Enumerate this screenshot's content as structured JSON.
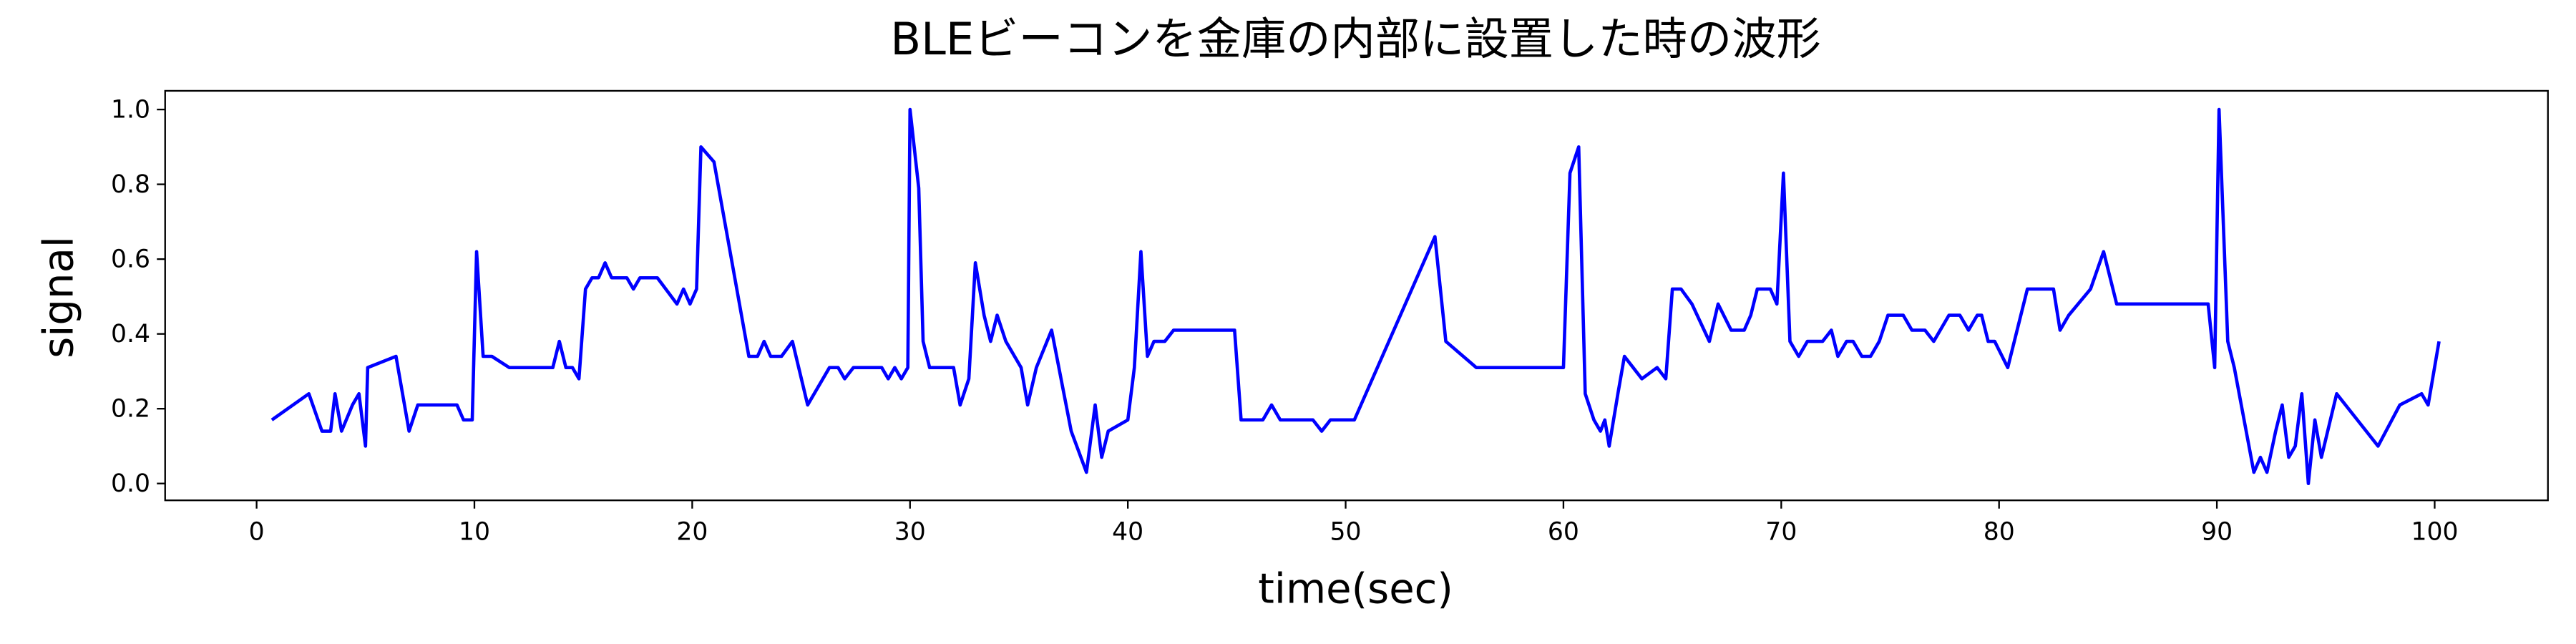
{
  "chart_data": {
    "type": "line",
    "title": "BLEビーコンを金庫の内部に設置した時の波形",
    "x_label": "time(sec)",
    "y_label": "signal",
    "xlim": [
      -4.2,
      105.2
    ],
    "ylim": [
      -0.045,
      1.05
    ],
    "xticks": [
      0,
      10,
      20,
      30,
      40,
      50,
      60,
      70,
      80,
      90,
      100
    ],
    "yticks": [
      {
        "value": 0,
        "label": "0.0"
      },
      {
        "value": 0.2,
        "label": "0.2"
      },
      {
        "value": 0.4,
        "label": "0.4"
      },
      {
        "value": 0.6,
        "label": "0.6"
      },
      {
        "value": 0.8,
        "label": "0.8"
      },
      {
        "value": 1,
        "label": "1.0"
      }
    ],
    "grid": false,
    "series": [
      {
        "color": "#0000ff",
        "x": [
          0.7,
          2.4,
          3.0,
          3.4,
          3.6,
          3.9,
          4.4,
          4.7,
          5.0,
          5.1,
          6.4,
          7.0,
          7.4,
          9.2,
          9.5,
          9.9,
          10.1,
          10.4,
          10.8,
          11.6,
          13.6,
          13.9,
          14.2,
          14.5,
          14.8,
          15.1,
          15.4,
          15.7,
          16.0,
          16.3,
          17.0,
          17.3,
          17.6,
          18.4,
          19.3,
          19.6,
          19.9,
          20.2,
          20.4,
          21.0,
          22.6,
          23.0,
          23.3,
          23.6,
          24.1,
          24.6,
          25.3,
          26.3,
          26.7,
          27.0,
          27.4,
          28.7,
          29.0,
          29.3,
          29.6,
          29.9,
          30.0,
          30.4,
          30.6,
          30.9,
          32.0,
          32.3,
          32.7,
          33.0,
          33.4,
          33.7,
          34.0,
          34.4,
          35.1,
          35.4,
          35.8,
          36.5,
          37.4,
          38.1,
          38.5,
          38.8,
          39.1,
          40.0,
          40.3,
          40.6,
          40.9,
          41.2,
          41.7,
          42.1,
          44.9,
          45.2,
          46.2,
          46.6,
          47.0,
          48.5,
          48.9,
          49.3,
          50.4,
          54.1,
          54.6,
          56.0,
          60.0,
          60.3,
          60.7,
          61.0,
          61.4,
          61.7,
          61.9,
          62.1,
          62.5,
          62.8,
          63.6,
          64.3,
          64.7,
          65.0,
          65.4,
          65.9,
          66.7,
          67.1,
          67.7,
          68.3,
          68.6,
          68.9,
          69.5,
          69.8,
          70.1,
          70.4,
          70.8,
          71.2,
          71.9,
          72.3,
          72.6,
          73.0,
          73.3,
          73.7,
          74.1,
          74.5,
          74.9,
          75.6,
          76.0,
          76.6,
          77.0,
          77.7,
          78.2,
          78.6,
          79.0,
          79.2,
          79.5,
          79.8,
          80.4,
          81.3,
          82.5,
          82.8,
          83.2,
          84.2,
          84.8,
          85.4,
          89.6,
          89.9,
          90.1,
          90.5,
          90.8,
          91.7,
          92.0,
          92.3,
          92.7,
          93.0,
          93.3,
          93.6,
          93.9,
          94.2,
          94.5,
          94.8,
          95.5,
          97.4,
          98.4,
          99.4,
          99.7,
          100.2
        ],
        "values": [
          0.17,
          0.24,
          0.14,
          0.14,
          0.24,
          0.14,
          0.21,
          0.24,
          0.1,
          0.31,
          0.34,
          0.14,
          0.21,
          0.21,
          0.17,
          0.17,
          0.62,
          0.34,
          0.34,
          0.31,
          0.31,
          0.38,
          0.31,
          0.31,
          0.28,
          0.52,
          0.55,
          0.55,
          0.59,
          0.55,
          0.55,
          0.52,
          0.55,
          0.55,
          0.48,
          0.52,
          0.48,
          0.52,
          0.9,
          0.86,
          0.34,
          0.34,
          0.38,
          0.34,
          0.34,
          0.38,
          0.21,
          0.31,
          0.31,
          0.28,
          0.31,
          0.31,
          0.28,
          0.31,
          0.28,
          0.31,
          1.0,
          0.79,
          0.38,
          0.31,
          0.31,
          0.21,
          0.28,
          0.59,
          0.45,
          0.38,
          0.45,
          0.38,
          0.31,
          0.21,
          0.31,
          0.41,
          0.14,
          0.03,
          0.21,
          0.07,
          0.14,
          0.17,
          0.31,
          0.62,
          0.34,
          0.38,
          0.38,
          0.41,
          0.41,
          0.17,
          0.17,
          0.21,
          0.17,
          0.17,
          0.14,
          0.17,
          0.17,
          0.66,
          0.38,
          0.31,
          0.31,
          0.83,
          0.9,
          0.24,
          0.17,
          0.14,
          0.17,
          0.1,
          0.24,
          0.34,
          0.28,
          0.31,
          0.28,
          0.52,
          0.52,
          0.48,
          0.38,
          0.48,
          0.41,
          0.41,
          0.45,
          0.52,
          0.52,
          0.48,
          0.83,
          0.38,
          0.34,
          0.38,
          0.38,
          0.41,
          0.34,
          0.38,
          0.38,
          0.34,
          0.34,
          0.38,
          0.45,
          0.45,
          0.41,
          0.41,
          0.38,
          0.45,
          0.45,
          0.41,
          0.45,
          0.45,
          0.38,
          0.38,
          0.31,
          0.52,
          0.52,
          0.41,
          0.45,
          0.52,
          0.62,
          0.48,
          0.48,
          0.31,
          1.0,
          0.38,
          0.31,
          0.03,
          0.07,
          0.03,
          0.14,
          0.21,
          0.07,
          0.1,
          0.24,
          0.0,
          0.17,
          0.07,
          0.24,
          0.1,
          0.21,
          0.24,
          0.21,
          0.38
        ]
      }
    ]
  }
}
